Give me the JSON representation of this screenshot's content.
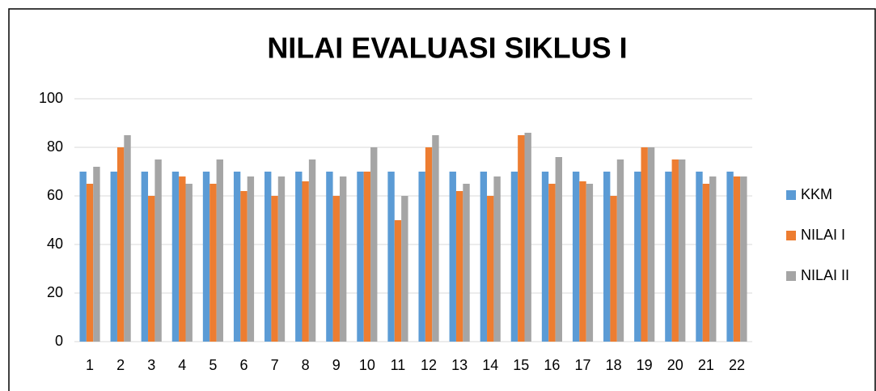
{
  "chart_data": {
    "type": "bar",
    "title": "NILAI EVALUASI SIKLUS I",
    "categories": [
      "1",
      "2",
      "3",
      "4",
      "5",
      "6",
      "7",
      "8",
      "9",
      "10",
      "11",
      "12",
      "13",
      "14",
      "15",
      "16",
      "17",
      "18",
      "19",
      "20",
      "21",
      "22"
    ],
    "series": [
      {
        "name": "KKM",
        "color": "#5b9bd5",
        "values": [
          70,
          70,
          70,
          70,
          70,
          70,
          70,
          70,
          70,
          70,
          70,
          70,
          70,
          70,
          70,
          70,
          70,
          70,
          70,
          70,
          70,
          70
        ]
      },
      {
        "name": "NILAI I",
        "color": "#ed7d31",
        "values": [
          65,
          80,
          60,
          68,
          65,
          62,
          60,
          66,
          60,
          70,
          50,
          80,
          62,
          60,
          85,
          65,
          66,
          60,
          80,
          75,
          65,
          68
        ]
      },
      {
        "name": "NILAI II",
        "color": "#a5a5a5",
        "values": [
          72,
          85,
          75,
          65,
          75,
          68,
          68,
          75,
          68,
          80,
          60,
          85,
          65,
          68,
          86,
          76,
          65,
          75,
          80,
          75,
          68,
          68
        ]
      }
    ],
    "ylim": [
      0,
      100
    ],
    "yticks": [
      0,
      20,
      40,
      60,
      80,
      100
    ],
    "grid": true,
    "legend": "right"
  }
}
